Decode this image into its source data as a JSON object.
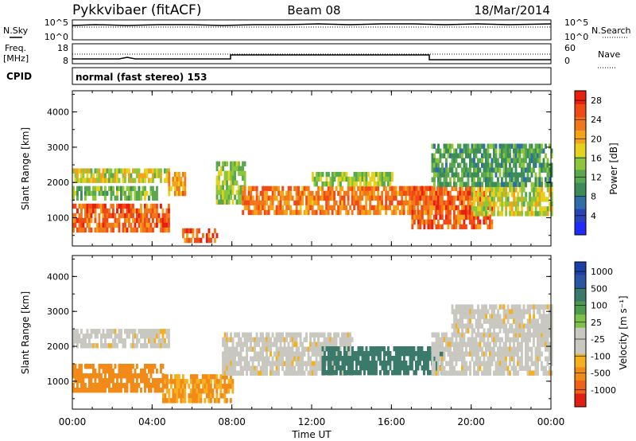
{
  "header": {
    "radar": "Pykkvibaer (fitACF)",
    "beam": "Beam 08",
    "date": "18/Mar/2014"
  },
  "noise_panel": {
    "left_label": "N.Sky",
    "right_label": "N.Search",
    "left_ticks": [
      "10^5",
      "10^0"
    ],
    "right_ticks": [
      "10^5",
      "10^0"
    ]
  },
  "freq_panel": {
    "left_label_1": "Freq.",
    "left_label_2": "[MHz]",
    "right_label": "Nave",
    "left_ticks": [
      "18",
      "8"
    ],
    "right_ticks": [
      "60",
      "0"
    ]
  },
  "cpid": {
    "label": "CPID",
    "text": "normal (fast stereo) 153"
  },
  "colors": {
    "power_scale": [
      "#1f2bff",
      "#2a44b8",
      "#2f6fa8",
      "#3c8c5a",
      "#5aa84e",
      "#8cc63a",
      "#e6d21e",
      "#f4a21a",
      "#f2761a",
      "#f04a16",
      "#e81e10"
    ],
    "velocity_scale": [
      "#1c3fa8",
      "#2a55a0",
      "#3a7a6a",
      "#4e9a4e",
      "#7cc24a",
      "#c8c8c0",
      "#c8c8c0",
      "#f5b020",
      "#f28a18",
      "#f0621a",
      "#e02010"
    ]
  },
  "chart_data": [
    {
      "type": "heatmap",
      "panel": "power",
      "xlabel": "Time UT",
      "ylabel": "Slant Range [km]",
      "x_ticks": [
        "00:00",
        "04:00",
        "08:00",
        "12:00",
        "16:00",
        "20:00",
        "00:00"
      ],
      "y_ticks": [
        "1000",
        "2000",
        "3000",
        "4000"
      ],
      "xlim": [
        0,
        24
      ],
      "ylim": [
        200,
        4600
      ],
      "colorbar": {
        "label": "Power [dB]",
        "ticks": [
          "4",
          "8",
          "12",
          "16",
          "20",
          "24",
          "28"
        ]
      },
      "regions": [
        {
          "t0": 0.0,
          "t1": 4.8,
          "r0": 600,
          "r1": 1400,
          "value": 26
        },
        {
          "t0": 0.0,
          "t1": 4.2,
          "r0": 1600,
          "r1": 1900,
          "value": 14
        },
        {
          "t0": 0.0,
          "t1": 4.8,
          "r0": 2000,
          "r1": 2400,
          "value": 18
        },
        {
          "t0": 4.8,
          "t1": 5.6,
          "r0": 1700,
          "r1": 2300,
          "value": 22
        },
        {
          "t0": 5.5,
          "t1": 7.2,
          "r0": 400,
          "r1": 700,
          "value": 26
        },
        {
          "t0": 7.2,
          "t1": 8.6,
          "r0": 1400,
          "r1": 2600,
          "value": 16
        },
        {
          "t0": 8.5,
          "t1": 18.5,
          "r0": 1100,
          "r1": 1900,
          "value": 24
        },
        {
          "t0": 12.0,
          "t1": 16.0,
          "r0": 1900,
          "r1": 2300,
          "value": 16
        },
        {
          "t0": 17.0,
          "t1": 21.0,
          "r0": 800,
          "r1": 1900,
          "value": 26
        },
        {
          "t0": 20.0,
          "t1": 24.0,
          "r0": 1100,
          "r1": 2000,
          "value": 18
        },
        {
          "t0": 18.0,
          "t1": 24.0,
          "r0": 2000,
          "r1": 3100,
          "value": 12
        }
      ]
    },
    {
      "type": "heatmap",
      "panel": "velocity",
      "xlabel": "Time UT",
      "ylabel": "Slant Range [km]",
      "x_ticks": [
        "00:00",
        "04:00",
        "08:00",
        "12:00",
        "16:00",
        "20:00",
        "00:00"
      ],
      "y_ticks": [
        "1000",
        "2000",
        "3000",
        "4000"
      ],
      "xlim": [
        0,
        24
      ],
      "ylim": [
        200,
        4600
      ],
      "colorbar": {
        "label": "Velocity [m s⁻¹]",
        "ticks": [
          "1000",
          "500",
          "100",
          "25",
          "-25",
          "-100",
          "-500",
          "-1000"
        ]
      },
      "regions": [
        {
          "t0": 0.0,
          "t1": 4.8,
          "r0": 2000,
          "r1": 2500,
          "value": 0
        },
        {
          "t0": 0.0,
          "t1": 4.5,
          "r0": 700,
          "r1": 1500,
          "value": -500
        },
        {
          "t0": 4.5,
          "t1": 8.0,
          "r0": 500,
          "r1": 1200,
          "value": -100
        },
        {
          "t0": 7.5,
          "t1": 14.0,
          "r0": 1200,
          "r1": 2400,
          "value": 0
        },
        {
          "t0": 12.5,
          "t1": 18.5,
          "r0": 1300,
          "r1": 2000,
          "value": 300
        },
        {
          "t0": 18.0,
          "t1": 24.0,
          "r0": 1200,
          "r1": 2400,
          "value": 0
        },
        {
          "t0": 19.0,
          "t1": 24.0,
          "r0": 2400,
          "r1": 3200,
          "value": 0
        }
      ]
    }
  ]
}
